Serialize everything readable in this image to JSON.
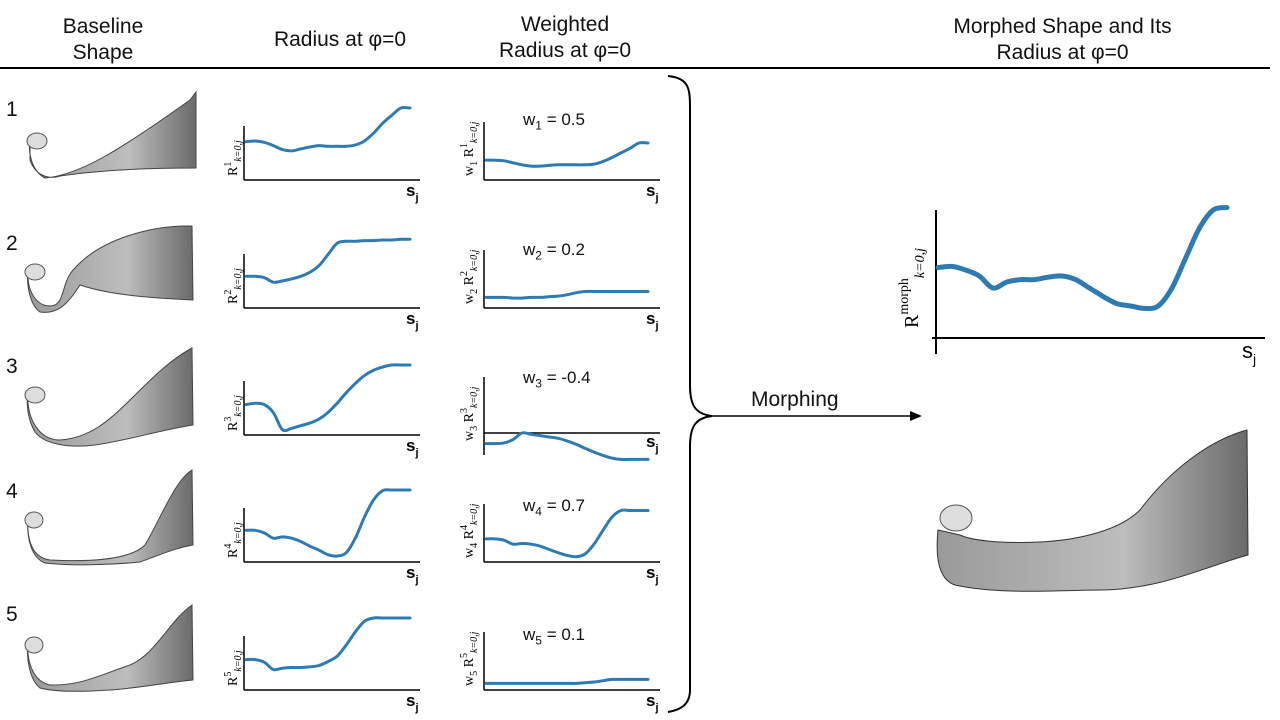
{
  "headers": {
    "baseline": [
      "Baseline",
      "Shape"
    ],
    "radius": "Radius at φ=0",
    "weighted": [
      "Weighted",
      "Radius at φ=0"
    ],
    "morphed": [
      "Morphed Shape and Its",
      "Radius at φ=0"
    ]
  },
  "rows": [
    {
      "num": "1",
      "weight_prefix": "w",
      "weight_sub": "1",
      "weight_value": "0.5",
      "curve": [
        0.52,
        0.53,
        0.51,
        0.46,
        0.4,
        0.38,
        0.41,
        0.44,
        0.46,
        0.45,
        0.45,
        0.45,
        0.47,
        0.53,
        0.65,
        0.8,
        0.92,
        1.03,
        1.03
      ],
      "weighted": [
        0.24,
        0.24,
        0.23,
        0.2,
        0.17,
        0.15,
        0.15,
        0.16,
        0.17,
        0.17,
        0.17,
        0.17,
        0.18,
        0.22,
        0.28,
        0.35,
        0.42,
        0.5,
        0.5
      ]
    },
    {
      "num": "2",
      "weight_prefix": "w",
      "weight_sub": "2",
      "weight_value": "0.2",
      "curve": [
        0.42,
        0.42,
        0.4,
        0.33,
        0.35,
        0.38,
        0.42,
        0.48,
        0.58,
        0.75,
        0.92,
        0.95,
        0.95,
        0.96,
        0.96,
        0.97,
        0.97,
        0.98,
        0.98
      ],
      "weighted": [
        0.1,
        0.1,
        0.1,
        0.09,
        0.09,
        0.1,
        0.1,
        0.11,
        0.12,
        0.14,
        0.17,
        0.19,
        0.19,
        0.19,
        0.19,
        0.19,
        0.19,
        0.19,
        0.19
      ]
    },
    {
      "num": "3",
      "weight_prefix": "w",
      "weight_sub": "3",
      "weight_value": "-0.4",
      "curve": [
        0.4,
        0.42,
        0.4,
        0.28,
        0.02,
        0.04,
        0.08,
        0.12,
        0.18,
        0.28,
        0.42,
        0.58,
        0.72,
        0.84,
        0.92,
        0.97,
        1.0,
        1.0,
        1.0
      ],
      "weighted": [
        -0.16,
        -0.16,
        -0.15,
        -0.1,
        0.0,
        -0.02,
        -0.04,
        -0.06,
        -0.08,
        -0.12,
        -0.17,
        -0.23,
        -0.29,
        -0.34,
        -0.38,
        -0.4,
        -0.4,
        -0.4,
        -0.4
      ]
    },
    {
      "num": "4",
      "weight_prefix": "w",
      "weight_sub": "4",
      "weight_value": "0.7",
      "curve": [
        0.42,
        0.42,
        0.38,
        0.3,
        0.32,
        0.3,
        0.25,
        0.18,
        0.12,
        0.05,
        0.03,
        0.08,
        0.3,
        0.62,
        0.88,
        1.02,
        1.03,
        1.03,
        1.03
      ],
      "weighted": [
        0.29,
        0.29,
        0.27,
        0.21,
        0.22,
        0.21,
        0.18,
        0.13,
        0.08,
        0.04,
        0.02,
        0.06,
        0.21,
        0.42,
        0.62,
        0.72,
        0.72,
        0.72,
        0.72
      ]
    },
    {
      "num": "5",
      "weight_prefix": "w",
      "weight_sub": "5",
      "weight_value": "0.1",
      "curve": [
        0.4,
        0.4,
        0.36,
        0.25,
        0.27,
        0.28,
        0.28,
        0.29,
        0.31,
        0.37,
        0.45,
        0.62,
        0.82,
        0.98,
        1.03,
        1.03,
        1.03,
        1.03,
        1.03
      ],
      "weighted": [
        0.04,
        0.04,
        0.04,
        0.04,
        0.04,
        0.04,
        0.04,
        0.04,
        0.04,
        0.04,
        0.04,
        0.05,
        0.06,
        0.08,
        0.1,
        0.1,
        0.1,
        0.1,
        0.1
      ]
    }
  ],
  "axis_x_label": "s",
  "axis_x_sub": "j",
  "radius_ylabel_base": "R",
  "radius_ylabel_sub": "k=0,j",
  "morph_label": "Morphing",
  "morph_ylabel_sup": "morph",
  "morph_curve": [
    0.52,
    0.53,
    0.5,
    0.45,
    0.35,
    0.4,
    0.42,
    0.42,
    0.44,
    0.45,
    0.42,
    0.35,
    0.28,
    0.22,
    0.2,
    0.18,
    0.2,
    0.35,
    0.6,
    0.85,
    1.0,
    1.02
  ],
  "colors": {
    "curve": "#2e7bb4",
    "shape": "#8c8c8c",
    "axis": "#000000"
  }
}
